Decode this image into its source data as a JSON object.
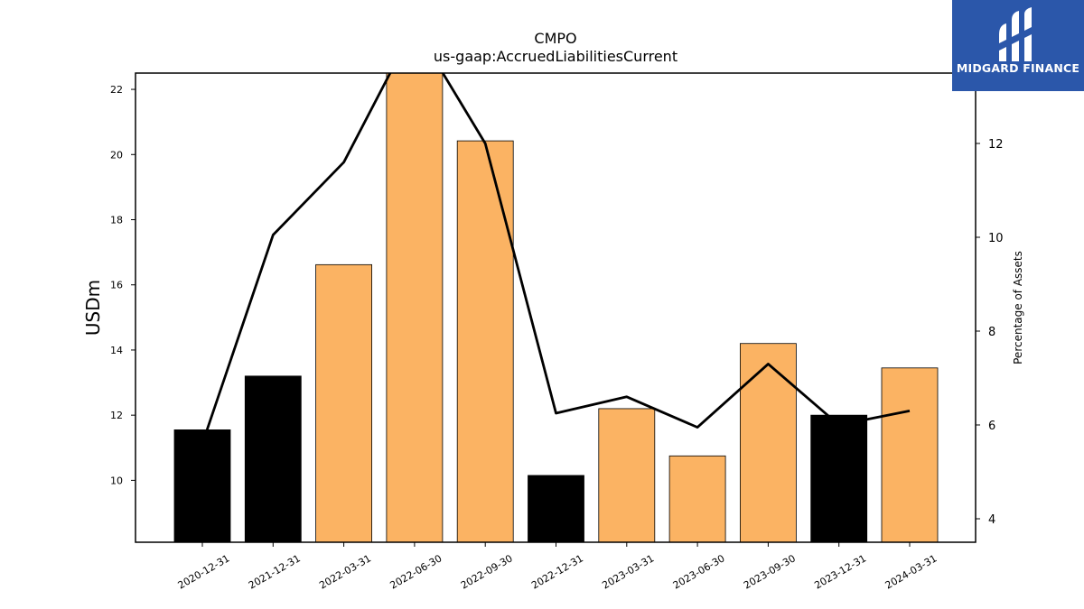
{
  "chart_data": {
    "type": "bar",
    "title": "CMPO",
    "subtitle": "us-gaap:AccruedLiabilitiesCurrent",
    "ylabel": "USDm",
    "y2label": "Percentage of Assets",
    "categories": [
      "2020-12-31",
      "2021-12-31",
      "2022-03-31",
      "2022-06-30",
      "2022-09-30",
      "2022-12-31",
      "2023-03-31",
      "2023-06-30",
      "2023-09-30",
      "2023-12-31",
      "2024-03-31"
    ],
    "series": [
      {
        "kind": "bar",
        "axis": "left",
        "values": [
          11.55,
          13.2,
          16.62,
          22.5,
          20.42,
          10.15,
          12.2,
          10.75,
          14.2,
          12.0,
          13.45
        ],
        "colors": [
          "#000000",
          "#000000",
          "#fbb363",
          "#fbb363",
          "#fbb363",
          "#000000",
          "#fbb363",
          "#fbb363",
          "#fbb363",
          "#000000",
          "#fbb363"
        ]
      },
      {
        "kind": "line",
        "axis": "right",
        "color": "#000000",
        "values": [
          5.6,
          10.05,
          11.6,
          14.5,
          12.0,
          6.25,
          6.6,
          5.95,
          7.3,
          6.0,
          6.3
        ]
      }
    ],
    "ylim": [
      8.1,
      22.5
    ],
    "y2lim": [
      3.5,
      13.5
    ],
    "yticks": [
      10,
      12,
      14,
      16,
      18,
      20,
      22
    ],
    "y2ticks": [
      4,
      6,
      8,
      10,
      12
    ],
    "grid": false
  },
  "logo": {
    "text": "MIDGARD FINANCE"
  },
  "colors": {
    "orange": "#fbb363",
    "black": "#000000",
    "logo_bg": "#2b57aa"
  }
}
